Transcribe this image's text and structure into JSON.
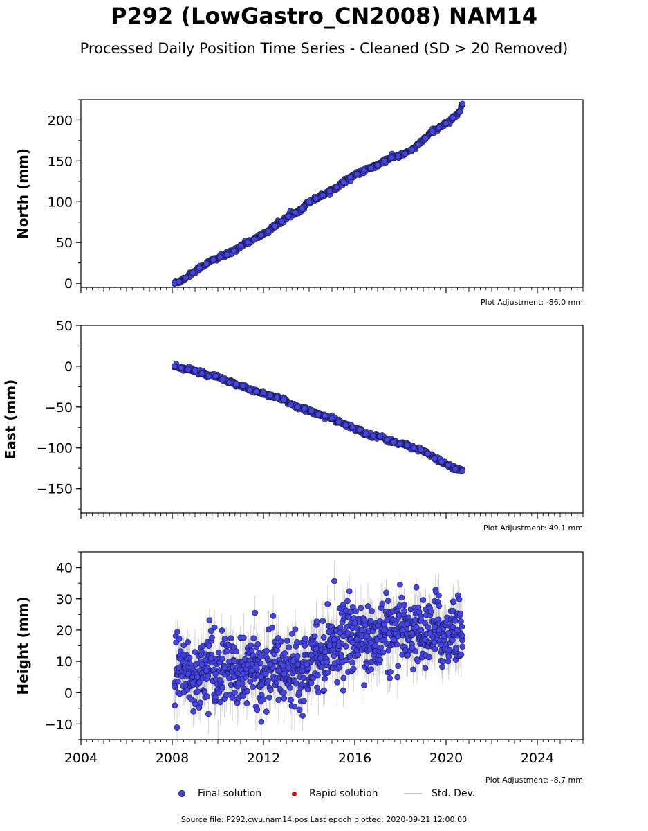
{
  "title": "P292 (LowGastro_CN2008) NAM14",
  "subtitle": "Processed Daily Position Time Series - Cleaned (SD > 20 Removed)",
  "footer": "Source file: P292.cwu.nam14.pos  Last epoch plotted: 2020-09-21 12:00:00",
  "legend": {
    "final": "Final solution",
    "rapid": "Rapid solution",
    "std": "Std. Dev."
  },
  "colors": {
    "final": "#4444ee",
    "rapid": "#dd0000",
    "std": "#b0b0b0"
  },
  "chart_data": [
    {
      "type": "scatter",
      "ylabel": "North (mm)",
      "adjustment": "Plot Adjustment: -86.0 mm",
      "xlim": [
        2004,
        2026
      ],
      "ylim": [
        -5,
        225
      ],
      "yticks": [
        0,
        50,
        100,
        150,
        200
      ],
      "ytick_labels": [
        "0",
        "50",
        "100",
        "150",
        "200"
      ],
      "series": [
        {
          "x": [
            2008.1,
            2008.3,
            2008.6,
            2008.9,
            2009.2,
            2009.5,
            2009.8,
            2010.1,
            2010.4,
            2010.7,
            2011.0,
            2011.3,
            2011.6,
            2011.9,
            2012.2,
            2012.5,
            2012.8,
            2013.1,
            2013.4,
            2013.7,
            2014.0,
            2014.3,
            2014.6,
            2014.9,
            2015.2,
            2015.5,
            2015.8,
            2016.1,
            2016.4,
            2016.7,
            2017.0,
            2017.3,
            2017.6,
            2017.9,
            2018.2,
            2018.5,
            2018.8,
            2019.1,
            2019.4,
            2019.7,
            2020.0,
            2020.3,
            2020.6,
            2020.72
          ],
          "y": [
            0,
            2,
            7,
            13,
            19,
            24,
            29,
            32,
            35,
            40,
            46,
            50,
            54,
            59,
            64,
            70,
            76,
            82,
            87,
            92,
            100,
            104,
            108,
            113,
            118,
            124,
            130,
            134,
            138,
            141,
            145,
            150,
            154,
            156,
            159,
            164,
            170,
            178,
            186,
            191,
            196,
            203,
            210,
            220
          ]
        }
      ]
    },
    {
      "type": "scatter",
      "ylabel": "East (mm)",
      "adjustment": "Plot Adjustment: 49.1 mm",
      "xlim": [
        2004,
        2026
      ],
      "ylim": [
        -180,
        50
      ],
      "yticks": [
        -150,
        -100,
        -50,
        0,
        50
      ],
      "ytick_labels": [
        "−150",
        "−100",
        "−50",
        "0",
        "50"
      ],
      "series": [
        {
          "x": [
            2008.1,
            2008.4,
            2008.7,
            2009.0,
            2009.3,
            2009.6,
            2009.9,
            2010.2,
            2010.5,
            2010.8,
            2011.1,
            2011.4,
            2011.7,
            2012.0,
            2012.3,
            2012.6,
            2012.9,
            2013.2,
            2013.5,
            2013.8,
            2014.1,
            2014.4,
            2014.7,
            2015.0,
            2015.3,
            2015.6,
            2015.9,
            2016.2,
            2016.5,
            2016.8,
            2017.1,
            2017.4,
            2017.7,
            2018.0,
            2018.3,
            2018.6,
            2018.9,
            2019.2,
            2019.5,
            2019.8,
            2020.1,
            2020.4,
            2020.72
          ],
          "y": [
            0,
            -2,
            -4,
            -5,
            -9,
            -12,
            -12,
            -16,
            -20,
            -22,
            -24,
            -29,
            -31,
            -33,
            -36,
            -38,
            -41,
            -47,
            -50,
            -52,
            -55,
            -59,
            -61,
            -64,
            -68,
            -72,
            -75,
            -78,
            -83,
            -85,
            -86,
            -90,
            -93,
            -95,
            -97,
            -100,
            -102,
            -107,
            -113,
            -117,
            -121,
            -126,
            -128
          ]
        }
      ]
    },
    {
      "type": "scatter",
      "ylabel": "Height (mm)",
      "adjustment": "Plot Adjustment: -8.7 mm",
      "xlim": [
        2004,
        2026
      ],
      "ylim": [
        -15,
        45
      ],
      "yticks": [
        -10,
        0,
        10,
        20,
        30,
        40
      ],
      "ytick_labels": [
        "−10",
        "0",
        "10",
        "20",
        "30",
        "40"
      ],
      "xticks": [
        2004,
        2008,
        2012,
        2016,
        2020,
        2024
      ],
      "xtick_labels": [
        "2004",
        "2008",
        "2012",
        "2016",
        "2020",
        "2024"
      ],
      "series": [
        {
          "x": [
            2008.1,
            2008.3,
            2008.5,
            2008.7,
            2008.9,
            2009.1,
            2009.3,
            2009.5,
            2009.7,
            2009.9,
            2010.1,
            2010.3,
            2010.5,
            2010.7,
            2010.9,
            2011.1,
            2011.3,
            2011.5,
            2011.7,
            2011.9,
            2012.1,
            2012.3,
            2012.5,
            2012.7,
            2012.9,
            2013.1,
            2013.3,
            2013.5,
            2013.7,
            2013.9,
            2014.1,
            2014.3,
            2014.5,
            2014.7,
            2014.9,
            2015.1,
            2015.3,
            2015.5,
            2015.7,
            2015.9,
            2016.1,
            2016.3,
            2016.5,
            2016.7,
            2016.9,
            2017.1,
            2017.3,
            2017.5,
            2017.7,
            2017.9,
            2018.1,
            2018.3,
            2018.5,
            2018.7,
            2018.9,
            2019.1,
            2019.3,
            2019.5,
            2019.7,
            2019.9,
            2020.1,
            2020.3,
            2020.5,
            2020.72
          ],
          "y": [
            2,
            8,
            12,
            6,
            3,
            5,
            9,
            7,
            11,
            6,
            4,
            8,
            10,
            5,
            3,
            6,
            9,
            7,
            8,
            5,
            6,
            9,
            10,
            7,
            6,
            8,
            10,
            9,
            7,
            9,
            12,
            14,
            11,
            13,
            15,
            17,
            15,
            18,
            19,
            16,
            17,
            20,
            18,
            16,
            15,
            18,
            20,
            19,
            17,
            18,
            20,
            22,
            19,
            21,
            20,
            17,
            19,
            21,
            20,
            18,
            19,
            21,
            20,
            18
          ]
        }
      ]
    }
  ]
}
